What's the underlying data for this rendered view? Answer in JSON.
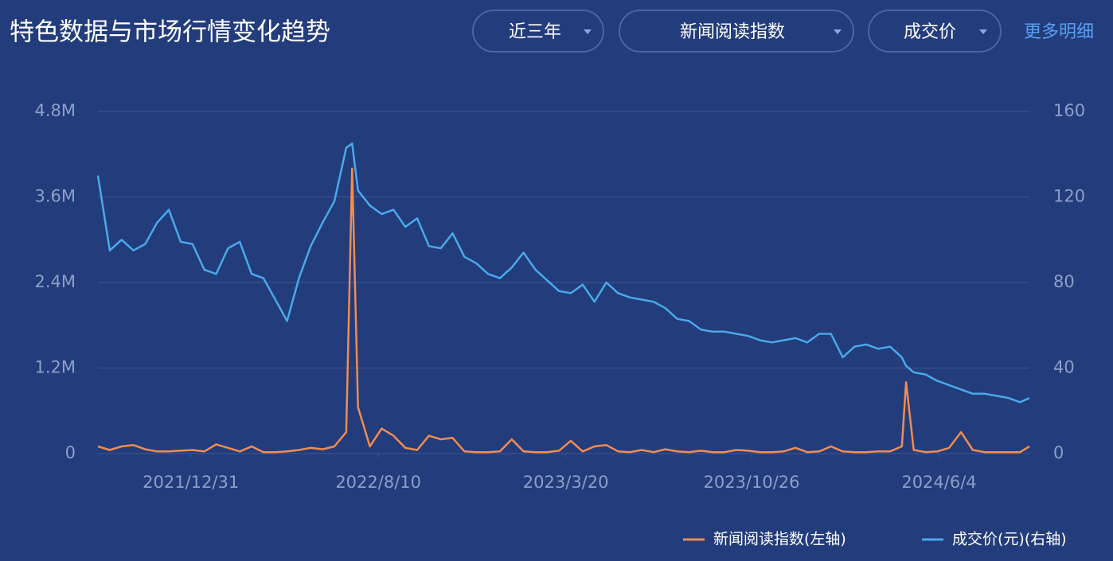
{
  "header": {
    "title": "特色数据与市场行情变化趋势",
    "filters": [
      "近三年",
      "新闻阅读指数",
      "成交价"
    ],
    "link": "更多明细"
  },
  "chart_data": {
    "type": "line",
    "x": [
      "2021/9/12",
      "2021/9/26",
      "2021/10/10",
      "2021/10/24",
      "2021/11/7",
      "2021/11/21",
      "2021/12/5",
      "2021/12/19",
      "2022/1/2",
      "2022/1/16",
      "2022/1/30",
      "2022/2/13",
      "2022/2/27",
      "2022/3/13",
      "2022/3/27",
      "2022/4/10",
      "2022/4/24",
      "2022/5/8",
      "2022/5/22",
      "2022/6/5",
      "2022/6/19",
      "2022/7/3",
      "2022/7/10",
      "2022/7/17",
      "2022/7/31",
      "2022/8/14",
      "2022/8/28",
      "2022/9/11",
      "2022/9/25",
      "2022/10/9",
      "2022/10/23",
      "2022/11/6",
      "2022/11/20",
      "2022/12/4",
      "2022/12/18",
      "2023/1/1",
      "2023/1/15",
      "2023/1/29",
      "2023/2/12",
      "2023/2/26",
      "2023/3/12",
      "2023/3/26",
      "2023/4/9",
      "2023/4/23",
      "2023/5/7",
      "2023/5/21",
      "2023/6/4",
      "2023/6/18",
      "2023/7/2",
      "2023/7/16",
      "2023/7/30",
      "2023/8/13",
      "2023/8/27",
      "2023/9/10",
      "2023/9/24",
      "2023/10/8",
      "2023/10/22",
      "2023/11/5",
      "2023/11/19",
      "2023/12/3",
      "2023/12/17",
      "2023/12/31",
      "2024/1/14",
      "2024/1/28",
      "2024/2/11",
      "2024/2/25",
      "2024/3/10",
      "2024/3/24",
      "2024/4/7",
      "2024/4/21",
      "2024/4/26",
      "2024/5/5",
      "2024/5/19",
      "2024/6/2",
      "2024/6/16",
      "2024/6/30",
      "2024/7/14",
      "2024/7/28",
      "2024/8/11",
      "2024/8/25",
      "2024/9/8",
      "2024/9/19"
    ],
    "xlim": [
      "2021/9/12",
      "2024/9/19"
    ],
    "xticks": [
      "2021/12/31",
      "2022/8/10",
      "2023/3/20",
      "2023/10/26",
      "2024/6/4"
    ],
    "ylim": [
      0,
      4800000
    ],
    "yticks": [
      0,
      {
        "value": 1200000,
        "label": "1.2M"
      },
      {
        "value": 2400000,
        "label": "2.4M"
      },
      {
        "value": 3600000,
        "label": "3.6M"
      },
      {
        "value": 4800000,
        "label": "4.8M"
      }
    ],
    "y2lim": [
      0,
      160
    ],
    "y2ticks": [
      0,
      40,
      80,
      120,
      160
    ],
    "grid": true,
    "legend": "bottom-right",
    "series": [
      {
        "name": "新闻阅读指数(左轴)",
        "color": "#f28c50",
        "axis": "y",
        "values": [
          100000,
          50000,
          100000,
          120000,
          60000,
          30000,
          30000,
          40000,
          50000,
          30000,
          130000,
          80000,
          30000,
          100000,
          20000,
          20000,
          30000,
          50000,
          80000,
          60000,
          100000,
          300000,
          4000000,
          650000,
          100000,
          350000,
          250000,
          80000,
          50000,
          250000,
          200000,
          220000,
          30000,
          20000,
          20000,
          30000,
          200000,
          30000,
          20000,
          20000,
          40000,
          180000,
          30000,
          100000,
          120000,
          30000,
          20000,
          50000,
          20000,
          60000,
          30000,
          20000,
          40000,
          20000,
          20000,
          50000,
          40000,
          20000,
          20000,
          30000,
          80000,
          20000,
          30000,
          100000,
          30000,
          20000,
          20000,
          30000,
          30000,
          100000,
          1000000,
          50000,
          20000,
          30000,
          80000,
          300000,
          50000,
          20000,
          20000,
          20000,
          20000,
          100000
        ]
      },
      {
        "name": "成交价(元)(右轴)",
        "color": "#4aa8ec",
        "axis": "y2",
        "values": [
          130,
          95,
          100,
          95,
          98,
          108,
          114,
          99,
          98,
          86,
          84,
          96,
          99,
          84,
          82,
          72,
          62,
          82,
          97,
          108,
          118,
          143,
          145,
          123,
          116,
          112,
          114,
          106,
          110,
          97,
          96,
          103,
          92,
          89,
          84,
          82,
          87,
          94,
          86,
          81,
          76,
          75,
          79,
          71,
          80,
          75,
          73,
          72,
          71,
          68,
          63,
          62,
          58,
          57,
          57,
          56,
          55,
          53,
          52,
          53,
          54,
          52,
          56,
          56,
          45,
          50,
          51,
          49,
          50,
          45,
          41,
          38,
          37,
          34,
          32,
          30,
          28,
          28,
          27,
          26,
          24,
          26
        ]
      }
    ]
  }
}
